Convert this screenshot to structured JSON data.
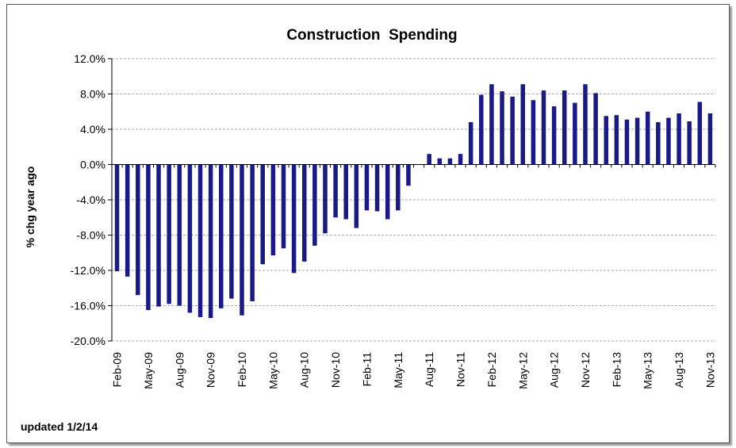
{
  "chart_data": {
    "type": "bar",
    "title": "Construction  Spending",
    "ylabel": "% chg year ago",
    "xlabel": "",
    "note": "updated 1/2/14",
    "ylim": [
      -20,
      12
    ],
    "y_ticks": [
      12,
      8,
      4,
      0,
      -4,
      -8,
      -12,
      -16,
      -20
    ],
    "y_tick_labels": [
      "12.0%",
      "8.0%",
      "4.0%",
      "0.0%",
      "-4.0%",
      "-8.0%",
      "-12.0%",
      "-16.0%",
      "-20.0%"
    ],
    "grid": true,
    "legend": "none",
    "bar_color": "#1a1a80",
    "categories": [
      "Feb-09",
      "Mar-09",
      "Apr-09",
      "May-09",
      "Jun-09",
      "Jul-09",
      "Aug-09",
      "Sep-09",
      "Oct-09",
      "Nov-09",
      "Dec-09",
      "Jan-10",
      "Feb-10",
      "Mar-10",
      "Apr-10",
      "May-10",
      "Jun-10",
      "Jul-10",
      "Aug-10",
      "Sep-10",
      "Oct-10",
      "Nov-10",
      "Dec-10",
      "Jan-11",
      "Feb-11",
      "Mar-11",
      "Apr-11",
      "May-11",
      "Jun-11",
      "Jul-11",
      "Aug-11",
      "Sep-11",
      "Oct-11",
      "Nov-11",
      "Dec-11",
      "Jan-12",
      "Feb-12",
      "Mar-12",
      "Apr-12",
      "May-12",
      "Jun-12",
      "Jul-12",
      "Aug-12",
      "Sep-12",
      "Oct-12",
      "Nov-12",
      "Dec-12",
      "Jan-13",
      "Feb-13",
      "Mar-13",
      "Apr-13",
      "May-13",
      "Jun-13",
      "Jul-13",
      "Aug-13",
      "Sep-13",
      "Oct-13",
      "Nov-13"
    ],
    "x_tick_labels": [
      "Feb-09",
      "May-09",
      "Aug-09",
      "Nov-09",
      "Feb-10",
      "May-10",
      "Aug-10",
      "Nov-10",
      "Feb-11",
      "May-11",
      "Aug-11",
      "Nov-11",
      "Feb-12",
      "May-12",
      "Aug-12",
      "Nov-12",
      "Feb-13",
      "May-13",
      "Aug-13",
      "Nov-13"
    ],
    "values": [
      -12.1,
      -12.7,
      -14.8,
      -16.5,
      -16.1,
      -15.8,
      -16.0,
      -16.8,
      -17.3,
      -17.4,
      -16.3,
      -15.2,
      -17.1,
      -15.5,
      -11.3,
      -10.3,
      -9.5,
      -12.3,
      -11.0,
      -9.2,
      -7.8,
      -6.0,
      -6.2,
      -7.2,
      -5.2,
      -5.3,
      -6.2,
      -5.2,
      -2.4,
      0.0,
      1.2,
      0.7,
      0.7,
      1.2,
      4.8,
      7.9,
      9.1,
      8.3,
      7.7,
      9.1,
      7.3,
      8.4,
      6.6,
      8.4,
      7.0,
      9.1,
      8.1,
      5.5,
      5.6,
      5.1,
      5.3,
      6.0,
      4.8,
      5.3,
      5.8,
      4.9,
      7.1,
      5.8
    ]
  }
}
